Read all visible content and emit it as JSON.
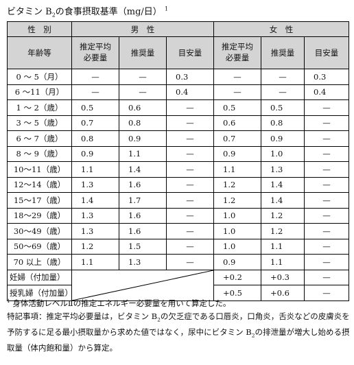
{
  "title": {
    "prefix": "ビタミン B",
    "sub": "2",
    "suffix": "の食事摂取基準（mg/日）",
    "sup": "1"
  },
  "headers": {
    "sex": "性　別",
    "male": "男　性",
    "female": "女　性",
    "age": "年齢等",
    "ear_line1": "推定平均",
    "ear_line2": "必要量",
    "rda": "推奨量",
    "ai": "目安量"
  },
  "rows": [
    {
      "label": "0 ～ 5（月）",
      "m": [
        "—",
        "—",
        "0.3"
      ],
      "f": [
        "—",
        "—",
        "0.3"
      ]
    },
    {
      "label": "6 ～11（月）",
      "m": [
        "—",
        "—",
        "0.4"
      ],
      "f": [
        "—",
        "—",
        "0.4"
      ]
    },
    {
      "label": "1 ～ 2（歳）",
      "m": [
        "0.5",
        "0.6",
        "—"
      ],
      "f": [
        "0.5",
        "0.5",
        "—"
      ]
    },
    {
      "label": "3 ～ 5（歳）",
      "m": [
        "0.7",
        "0.8",
        "—"
      ],
      "f": [
        "0.6",
        "0.8",
        "—"
      ]
    },
    {
      "label": "6 ～ 7（歳）",
      "m": [
        "0.8",
        "0.9",
        "—"
      ],
      "f": [
        "0.7",
        "0.9",
        "—"
      ]
    },
    {
      "label": "8 ～ 9（歳）",
      "m": [
        "0.9",
        "1.1",
        "—"
      ],
      "f": [
        "0.9",
        "1.0",
        "—"
      ]
    },
    {
      "label": "10～11（歳）",
      "m": [
        "1.1",
        "1.4",
        "—"
      ],
      "f": [
        "1.1",
        "1.3",
        "—"
      ]
    },
    {
      "label": "12～14（歳）",
      "m": [
        "1.3",
        "1.6",
        "—"
      ],
      "f": [
        "1.2",
        "1.4",
        "—"
      ]
    },
    {
      "label": "15～17（歳）",
      "m": [
        "1.4",
        "1.7",
        "—"
      ],
      "f": [
        "1.2",
        "1.4",
        "—"
      ]
    },
    {
      "label": "18～29（歳）",
      "m": [
        "1.3",
        "1.6",
        "—"
      ],
      "f": [
        "1.0",
        "1.2",
        "—"
      ]
    },
    {
      "label": "30～49（歳）",
      "m": [
        "1.3",
        "1.6",
        "—"
      ],
      "f": [
        "1.0",
        "1.2",
        "—"
      ]
    },
    {
      "label": "50～69（歳）",
      "m": [
        "1.2",
        "1.5",
        "—"
      ],
      "f": [
        "1.0",
        "1.1",
        "—"
      ]
    },
    {
      "label": "70 以上（歳）",
      "m": [
        "1.1",
        "1.3",
        "—"
      ],
      "f": [
        "0.9",
        "1.1",
        "—"
      ]
    }
  ],
  "extra_rows": [
    {
      "label": "妊婦（付加量）",
      "f": [
        "+0.2",
        "+0.3",
        "—"
      ]
    },
    {
      "label": "授乳婦（付加量）",
      "f": [
        "+0.5",
        "+0.6",
        "—"
      ]
    }
  ],
  "notes": {
    "n1_sup": "1",
    "n1": " 身体活動レベルⅡの推定エネルギー必要量を用いて算定した。",
    "n2_a": "特記事項：推定平均必要量は，ビタミン B",
    "n2_sub1": "2",
    "n2_b": "の欠乏症である口唇炎，口角炎，舌炎などの皮膚炎を予防するに足る最小摂取量から求めた値ではなく，尿中にビタミン B",
    "n2_sub2": "2",
    "n2_c": "の排泄量が増大し始める摂取量（体内飽和量）から算定。"
  }
}
